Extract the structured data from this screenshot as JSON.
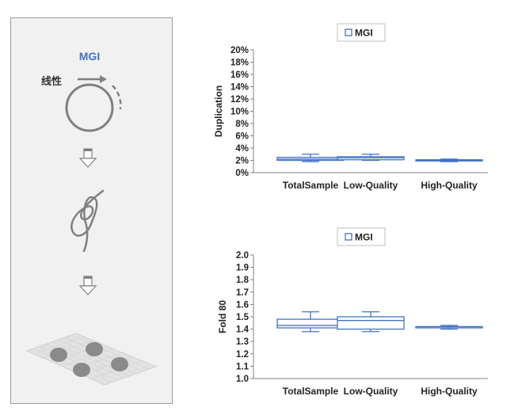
{
  "panel": {
    "brand": "MGI",
    "label_linear": "线性",
    "colors": {
      "brand": "#4472c4",
      "line": "#808080",
      "blob": "#8c8c8c",
      "mesh": "#cfcfcf"
    }
  },
  "chart_data": [
    {
      "type": "box",
      "legend": "MGI",
      "ylabel": "Duplication",
      "ylim": [
        0,
        20
      ],
      "yticks": [
        "0%",
        "2%",
        "4%",
        "6%",
        "8%",
        "10%",
        "12%",
        "14%",
        "16%",
        "18%",
        "20%"
      ],
      "categories": [
        "TotalSample",
        "Low-Quality",
        "High-Quality"
      ],
      "boxes": [
        {
          "min": 1.8,
          "q1": 2.0,
          "median": 2.2,
          "q3": 2.5,
          "max": 3.0
        },
        {
          "min": 2.0,
          "q1": 2.1,
          "median": 2.4,
          "q3": 2.6,
          "max": 3.0
        },
        {
          "min": 1.8,
          "q1": 1.9,
          "median": 2.0,
          "q3": 2.1,
          "max": 2.2
        }
      ],
      "color": "#4472c4"
    },
    {
      "type": "box",
      "legend": "MGI",
      "ylabel": "Fold 80",
      "ylim": [
        1.0,
        2.0
      ],
      "yticks": [
        "1.0",
        "1.1",
        "1.2",
        "1.3",
        "1.4",
        "1.5",
        "1.6",
        "1.7",
        "1.8",
        "1.9",
        "2.0"
      ],
      "categories": [
        "TotalSample",
        "Low-Quality",
        "High-Quality"
      ],
      "boxes": [
        {
          "min": 1.38,
          "q1": 1.41,
          "median": 1.43,
          "q3": 1.48,
          "max": 1.54
        },
        {
          "min": 1.38,
          "q1": 1.4,
          "median": 1.47,
          "q3": 1.5,
          "max": 1.54
        },
        {
          "min": 1.4,
          "q1": 1.41,
          "median": 1.42,
          "q3": 1.42,
          "max": 1.43
        }
      ],
      "color": "#4472c4"
    }
  ]
}
